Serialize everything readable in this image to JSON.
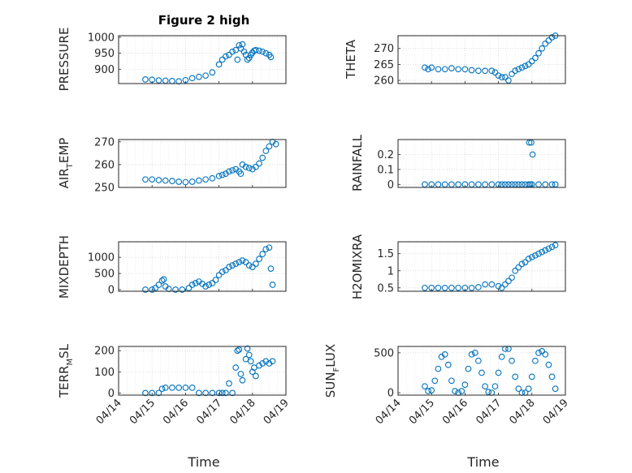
{
  "figure": {
    "title": "Figure 2 high",
    "xlabel": "Time",
    "marker_color": "#0072BD"
  },
  "chart_data": [
    {
      "type": "scatter",
      "name": "pressure",
      "ylabel": "PRESSURE",
      "sub": "",
      "ylim": [
        855,
        1005
      ],
      "yticks": [
        900,
        950,
        1000
      ],
      "ytick_labels": [
        "900",
        "950",
        "1000"
      ],
      "xlim": [
        "04/14",
        "04/19"
      ],
      "xticks": [
        "04/14",
        "04/15",
        "04/16",
        "04/17",
        "04/18",
        "04/19"
      ],
      "grid": true,
      "x": [
        0.8,
        1.0,
        1.2,
        1.4,
        1.6,
        1.8,
        2.0,
        2.2,
        2.4,
        2.6,
        2.8,
        3.0,
        3.1,
        3.2,
        3.3,
        3.4,
        3.5,
        3.55,
        3.6,
        3.65,
        3.7,
        3.75,
        3.8,
        3.85,
        3.9,
        3.95,
        4.0,
        4.05,
        4.1,
        4.2,
        4.3,
        4.4,
        4.5,
        4.55
      ],
      "y": [
        868,
        867,
        865,
        864,
        863,
        862,
        866,
        872,
        876,
        880,
        890,
        915,
        930,
        940,
        945,
        955,
        960,
        930,
        975,
        965,
        978,
        955,
        945,
        930,
        935,
        945,
        952,
        958,
        960,
        958,
        955,
        950,
        945,
        938
      ]
    },
    {
      "type": "scatter",
      "name": "theta",
      "ylabel": "THETA",
      "sub": "",
      "ylim": [
        259,
        274
      ],
      "yticks": [
        260,
        265,
        270
      ],
      "ytick_labels": [
        "260",
        "265",
        "270"
      ],
      "xlim": [
        "04/14",
        "04/19"
      ],
      "xticks": [
        "04/14",
        "04/15",
        "04/16",
        "04/17",
        "04/18",
        "04/19"
      ],
      "grid": true,
      "x": [
        0.8,
        0.9,
        1.0,
        1.2,
        1.4,
        1.6,
        1.8,
        2.0,
        2.2,
        2.4,
        2.6,
        2.8,
        2.9,
        3.0,
        3.1,
        3.2,
        3.3,
        3.4,
        3.5,
        3.6,
        3.7,
        3.8,
        3.9,
        4.0,
        4.1,
        4.2,
        4.3,
        4.4,
        4.5,
        4.6,
        4.7
      ],
      "y": [
        264,
        263.5,
        264,
        263.5,
        263.5,
        263.8,
        263.5,
        263.5,
        263.2,
        263,
        263,
        263,
        262.5,
        261.5,
        261,
        261,
        260,
        262,
        263,
        263.5,
        264,
        264.5,
        265,
        266,
        267,
        268.5,
        270,
        271.5,
        272.5,
        273.5,
        274
      ]
    },
    {
      "type": "scatter",
      "name": "air_temp",
      "ylabel": "AIR",
      "sub": "T",
      "ylabel_suffix": "EMP",
      "ylim": [
        250,
        271
      ],
      "yticks": [
        250,
        260,
        270
      ],
      "ytick_labels": [
        "250",
        "260",
        "270"
      ],
      "xlim": [
        "04/14",
        "04/19"
      ],
      "xticks": [
        "04/14",
        "04/15",
        "04/16",
        "04/17",
        "04/18",
        "04/19"
      ],
      "grid": true,
      "x": [
        0.8,
        1.0,
        1.2,
        1.4,
        1.6,
        1.8,
        2.0,
        2.2,
        2.4,
        2.6,
        2.8,
        3.0,
        3.1,
        3.2,
        3.3,
        3.4,
        3.5,
        3.6,
        3.65,
        3.7,
        3.8,
        3.9,
        4.0,
        4.1,
        4.2,
        4.3,
        4.4,
        4.5,
        4.6,
        4.7
      ],
      "y": [
        253.5,
        253.5,
        253.2,
        253,
        252.8,
        252.5,
        252.3,
        252.5,
        253,
        253.5,
        254,
        255,
        255.5,
        256,
        257,
        257.5,
        258,
        257,
        256,
        260,
        259,
        258.5,
        258,
        259,
        260.5,
        263,
        266,
        268,
        270,
        269
      ]
    },
    {
      "type": "scatter",
      "name": "rainfall",
      "ylabel": "RAINFALL",
      "sub": "",
      "ylim": [
        -0.02,
        0.3
      ],
      "yticks": [
        0,
        0.1,
        0.2
      ],
      "ytick_labels": [
        "0",
        "0.1",
        "0.2"
      ],
      "xlim": [
        "04/14",
        "04/19"
      ],
      "xticks": [
        "04/14",
        "04/15",
        "04/16",
        "04/17",
        "04/18",
        "04/19"
      ],
      "grid": true,
      "x": [
        0.8,
        1.0,
        1.2,
        1.4,
        1.6,
        1.8,
        2.0,
        2.2,
        2.4,
        2.6,
        2.8,
        3.0,
        3.1,
        3.2,
        3.3,
        3.4,
        3.5,
        3.6,
        3.7,
        3.8,
        3.9,
        3.95,
        4.0,
        4.2,
        4.4,
        4.6,
        4.7,
        3.92,
        3.98,
        4.02
      ],
      "y": [
        0,
        0,
        0,
        0,
        0,
        0,
        0,
        0,
        0,
        0,
        0,
        0,
        0,
        0,
        0,
        0,
        0,
        0,
        0,
        0,
        0,
        0,
        0,
        0,
        0,
        0,
        0,
        0.28,
        0.28,
        0.2
      ]
    },
    {
      "type": "scatter",
      "name": "mixdepth",
      "ylabel": "MIXDEPTH",
      "sub": "",
      "ylim": [
        -50,
        1480
      ],
      "yticks": [
        0,
        500,
        1000
      ],
      "ytick_labels": [
        "0",
        "500",
        "1000"
      ],
      "xlim": [
        "04/14",
        "04/19"
      ],
      "xticks": [
        "04/14",
        "04/15",
        "04/16",
        "04/17",
        "04/18",
        "04/19"
      ],
      "grid": true,
      "x": [
        0.8,
        1.0,
        1.1,
        1.2,
        1.3,
        1.35,
        1.4,
        1.5,
        1.7,
        1.9,
        2.1,
        2.2,
        2.3,
        2.4,
        2.5,
        2.6,
        2.7,
        2.8,
        2.9,
        3.0,
        3.1,
        3.2,
        3.3,
        3.4,
        3.5,
        3.6,
        3.7,
        3.8,
        3.9,
        4.0,
        4.1,
        4.2,
        4.3,
        4.4,
        4.5,
        4.55,
        4.6
      ],
      "y": [
        0,
        0,
        50,
        150,
        280,
        320,
        100,
        20,
        0,
        0,
        50,
        150,
        200,
        250,
        180,
        100,
        150,
        200,
        300,
        450,
        550,
        600,
        700,
        750,
        800,
        850,
        900,
        850,
        750,
        700,
        800,
        950,
        1100,
        1250,
        1300,
        650,
        150
      ]
    },
    {
      "type": "scatter",
      "name": "h2omixra",
      "ylabel": "H2OMIXRA",
      "sub": "",
      "ylim": [
        0.4,
        1.85
      ],
      "yticks": [
        0.5,
        1,
        1.5
      ],
      "ytick_labels": [
        "0.5",
        "1",
        "1.5"
      ],
      "xlim": [
        "04/14",
        "04/19"
      ],
      "xticks": [
        "04/14",
        "04/15",
        "04/16",
        "04/17",
        "04/18",
        "04/19"
      ],
      "grid": true,
      "x": [
        0.8,
        1.0,
        1.2,
        1.4,
        1.6,
        1.8,
        2.0,
        2.2,
        2.4,
        2.6,
        2.8,
        3.0,
        3.1,
        3.2,
        3.3,
        3.4,
        3.5,
        3.6,
        3.7,
        3.8,
        3.9,
        4.0,
        4.1,
        4.2,
        4.3,
        4.4,
        4.5,
        4.6,
        4.7
      ],
      "y": [
        0.5,
        0.5,
        0.5,
        0.5,
        0.5,
        0.5,
        0.5,
        0.5,
        0.52,
        0.6,
        0.6,
        0.55,
        0.5,
        0.6,
        0.7,
        0.8,
        1.0,
        1.1,
        1.2,
        1.25,
        1.35,
        1.4,
        1.45,
        1.5,
        1.55,
        1.6,
        1.65,
        1.7,
        1.75
      ]
    },
    {
      "type": "scatter",
      "name": "terr_msl",
      "ylabel": "TERR",
      "sub": "M",
      "ylabel_suffix": "SL",
      "ylim": [
        -10,
        220
      ],
      "yticks": [
        0,
        100,
        200
      ],
      "ytick_labels": [
        "0",
        "100",
        "200"
      ],
      "xlim": [
        "04/14",
        "04/19"
      ],
      "xticks": [
        "04/14",
        "04/15",
        "04/16",
        "04/17",
        "04/18",
        "04/19"
      ],
      "grid": true,
      "x": [
        0.8,
        1.0,
        1.2,
        1.3,
        1.4,
        1.6,
        1.8,
        2.0,
        2.2,
        2.4,
        2.6,
        2.8,
        3.0,
        3.1,
        3.2,
        3.3,
        3.4,
        3.5,
        3.55,
        3.6,
        3.65,
        3.7,
        3.8,
        3.85,
        3.9,
        3.95,
        4.0,
        4.05,
        4.1,
        4.2,
        4.3,
        4.4,
        4.5,
        4.6
      ],
      "y": [
        0,
        0,
        0,
        20,
        25,
        25,
        25,
        25,
        25,
        0,
        0,
        0,
        0,
        0,
        0,
        45,
        0,
        120,
        200,
        205,
        90,
        60,
        160,
        210,
        180,
        150,
        100,
        120,
        80,
        130,
        140,
        150,
        140,
        150
      ]
    },
    {
      "type": "scatter",
      "name": "sun_flux",
      "ylabel": "SUN",
      "sub": "F",
      "ylabel_suffix": "LUX",
      "ylim": [
        -30,
        580
      ],
      "yticks": [
        0,
        500
      ],
      "ytick_labels": [
        "0",
        "500"
      ],
      "xlim": [
        "04/14",
        "04/19"
      ],
      "xticks": [
        "04/14",
        "04/15",
        "04/16",
        "04/17",
        "04/18",
        "04/19"
      ],
      "grid": true,
      "x": [
        0.8,
        0.9,
        1.0,
        1.1,
        1.2,
        1.3,
        1.4,
        1.5,
        1.6,
        1.7,
        1.8,
        1.9,
        2.0,
        2.1,
        2.2,
        2.3,
        2.4,
        2.5,
        2.6,
        2.7,
        2.8,
        2.9,
        3.0,
        3.1,
        3.2,
        3.3,
        3.4,
        3.5,
        3.6,
        3.7,
        3.8,
        3.9,
        4.0,
        4.1,
        4.2,
        4.3,
        4.4,
        4.5,
        4.6,
        4.7
      ],
      "y": [
        80,
        20,
        30,
        150,
        300,
        450,
        480,
        350,
        150,
        20,
        0,
        20,
        100,
        300,
        480,
        500,
        400,
        250,
        80,
        10,
        0,
        80,
        250,
        450,
        550,
        550,
        400,
        200,
        50,
        0,
        0,
        50,
        200,
        400,
        500,
        520,
        480,
        350,
        200,
        50
      ]
    }
  ]
}
